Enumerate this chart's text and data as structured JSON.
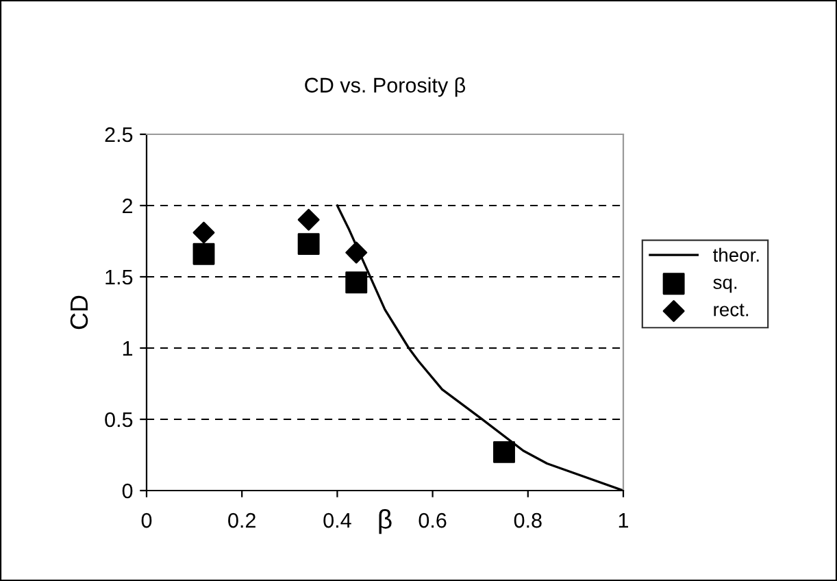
{
  "chart_data": {
    "type": "scatter",
    "title": "CD vs. Porosity β",
    "xlabel": "β",
    "ylabel": "CD",
    "series": [
      {
        "name": "theor.",
        "type": "line",
        "color": "#000000",
        "marker": "none",
        "line_style": "solid",
        "x": [
          0.4,
          0.425,
          0.5,
          0.55,
          0.57,
          0.62,
          0.7,
          0.79,
          0.84,
          1.0
        ],
        "values": [
          2.0,
          1.83,
          1.27,
          1.0,
          0.91,
          0.71,
          0.51,
          0.28,
          0.19,
          0.0
        ]
      },
      {
        "name": "sq.",
        "color": "#000000",
        "marker": "square",
        "x": [
          0.12,
          0.34,
          0.44,
          0.75
        ],
        "values": [
          1.66,
          1.73,
          1.46,
          0.27
        ]
      },
      {
        "name": "rect.",
        "color": "#000000",
        "marker": "diamond",
        "x": [
          0.12,
          0.34,
          0.44
        ],
        "values": [
          1.81,
          1.9,
          1.67
        ]
      }
    ],
    "xlim": [
      0,
      1
    ],
    "xticks": [
      0,
      0.2,
      0.4,
      0.6,
      0.8,
      1
    ],
    "ylim": [
      0,
      2.5
    ],
    "yticks": [
      0,
      0.5,
      1,
      1.5,
      2,
      2.5
    ],
    "grid": "y",
    "legend": "right"
  }
}
